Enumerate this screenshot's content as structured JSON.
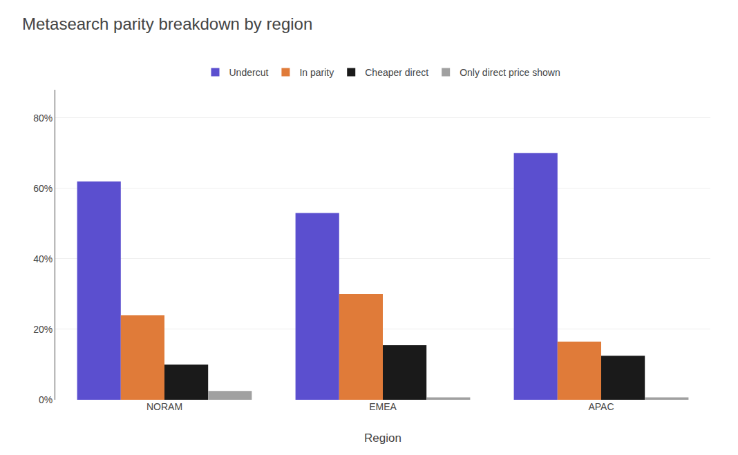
{
  "chart_data": {
    "type": "bar",
    "title": "Metasearch parity breakdown by region",
    "xlabel": "Region",
    "categories": [
      "NORAM",
      "EMEA",
      "APAC"
    ],
    "series": [
      {
        "name": "Undercut",
        "color": "#5b4fcf",
        "values": [
          0.62,
          0.53,
          0.7
        ]
      },
      {
        "name": "In parity",
        "color": "#e07b39",
        "values": [
          0.24,
          0.3,
          0.165
        ]
      },
      {
        "name": "Cheaper direct",
        "color": "#1a1a1a",
        "values": [
          0.1,
          0.155,
          0.125
        ]
      },
      {
        "name": "Only direct price shown",
        "color": "#a0a0a0",
        "values": [
          0.025,
          0.007,
          0.007
        ]
      }
    ],
    "ylim": [
      0,
      0.88
    ],
    "yticks": [
      {
        "value": 0.0,
        "label": "0%"
      },
      {
        "value": 0.2,
        "label": "20%"
      },
      {
        "value": 0.4,
        "label": "40%"
      },
      {
        "value": 0.6,
        "label": "60%"
      },
      {
        "value": 0.8,
        "label": "80%"
      }
    ],
    "grid": true,
    "legend": "top"
  }
}
